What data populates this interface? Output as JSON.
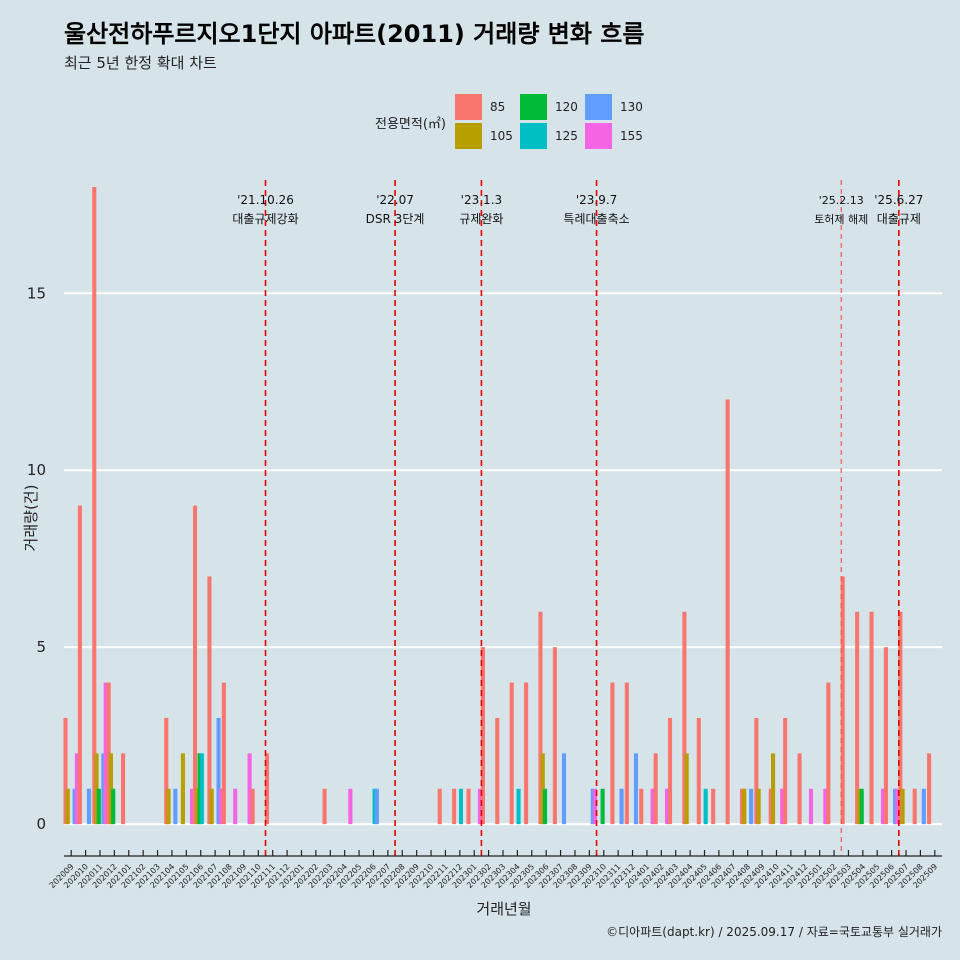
{
  "chart_data": {
    "type": "bar",
    "stacked": false,
    "title": "울산전하푸르지오1단지 아파트(2011) 거래량 변화 흐름",
    "subtitle": "최근 5년 한정 확대 차트",
    "xlabel": "거래년월",
    "ylabel": "거래량(건)",
    "ylim": [
      -0.9,
      18.2
    ],
    "yticks": [
      0,
      5,
      10,
      15
    ],
    "legend": {
      "title": "전용면적(㎡)",
      "position": "top",
      "entries": [
        {
          "name": "85",
          "color": "#F8766D"
        },
        {
          "name": "105",
          "color": "#B79F00"
        },
        {
          "name": "120",
          "color": "#00BA38"
        },
        {
          "name": "125",
          "color": "#00BFC4"
        },
        {
          "name": "130",
          "color": "#619CFF"
        },
        {
          "name": "155",
          "color": "#F564E3"
        }
      ]
    },
    "categories": [
      "202009",
      "202010",
      "202011",
      "202012",
      "202101",
      "202102",
      "202103",
      "202104",
      "202105",
      "202106",
      "202107",
      "202108",
      "202109",
      "202110",
      "202111",
      "202112",
      "202201",
      "202202",
      "202203",
      "202204",
      "202205",
      "202206",
      "202207",
      "202208",
      "202209",
      "202210",
      "202211",
      "202212",
      "202301",
      "202302",
      "202303",
      "202304",
      "202305",
      "202306",
      "202307",
      "202308",
      "202309",
      "202310",
      "202311",
      "202312",
      "202401",
      "202402",
      "202403",
      "202404",
      "202405",
      "202406",
      "202407",
      "202408",
      "202409",
      "202410",
      "202411",
      "202412",
      "202501",
      "202502",
      "202503",
      "202504",
      "202505",
      "202506",
      "202507",
      "202508",
      "202509"
    ],
    "series": [
      {
        "name": "85",
        "values": [
          3,
          9,
          18,
          4,
          2,
          0,
          0,
          3,
          0,
          9,
          7,
          4,
          0,
          1,
          2,
          0,
          0,
          0,
          1,
          0,
          0,
          0,
          0,
          0,
          0,
          0,
          1,
          1,
          1,
          5,
          3,
          4,
          4,
          6,
          5,
          0,
          0,
          0,
          4,
          4,
          1,
          2,
          3,
          6,
          3,
          1,
          12,
          1,
          3,
          1,
          3,
          2,
          0,
          4,
          7,
          6,
          6,
          5,
          6,
          1,
          2
        ]
      },
      {
        "name": "105",
        "values": [
          1,
          0,
          2,
          2,
          0,
          0,
          0,
          1,
          2,
          1,
          1,
          0,
          0,
          0,
          0,
          0,
          0,
          0,
          0,
          0,
          0,
          0,
          0,
          0,
          0,
          0,
          0,
          0,
          0,
          0,
          0,
          0,
          0,
          2,
          0,
          0,
          0,
          0,
          0,
          0,
          0,
          0,
          0,
          2,
          0,
          0,
          0,
          1,
          1,
          2,
          0,
          0,
          0,
          0,
          0,
          1,
          0,
          0,
          1,
          0,
          0
        ]
      },
      {
        "name": "120",
        "values": [
          0,
          0,
          1,
          1,
          0,
          0,
          0,
          0,
          0,
          2,
          0,
          0,
          0,
          0,
          0,
          0,
          0,
          0,
          0,
          0,
          0,
          0,
          0,
          0,
          0,
          0,
          0,
          0,
          0,
          0,
          0,
          0,
          0,
          1,
          0,
          0,
          0,
          1,
          0,
          0,
          0,
          0,
          0,
          0,
          0,
          0,
          0,
          0,
          0,
          0,
          0,
          0,
          0,
          0,
          0,
          1,
          0,
          0,
          0,
          0,
          0
        ]
      },
      {
        "name": "125",
        "values": [
          0,
          0,
          0,
          0,
          0,
          0,
          0,
          0,
          0,
          2,
          0,
          0,
          0,
          0,
          0,
          0,
          0,
          0,
          0,
          0,
          0,
          1,
          0,
          0,
          0,
          0,
          0,
          1,
          0,
          0,
          0,
          1,
          0,
          0,
          0,
          0,
          0,
          0,
          0,
          0,
          0,
          0,
          0,
          0,
          1,
          0,
          0,
          0,
          0,
          0,
          0,
          0,
          0,
          0,
          0,
          0,
          0,
          0,
          0,
          0,
          0
        ]
      },
      {
        "name": "130",
        "values": [
          1,
          1,
          2,
          0,
          0,
          0,
          0,
          1,
          0,
          0,
          3,
          0,
          0,
          0,
          0,
          0,
          0,
          0,
          0,
          0,
          0,
          1,
          0,
          0,
          0,
          0,
          0,
          0,
          0,
          0,
          0,
          0,
          0,
          0,
          2,
          0,
          1,
          0,
          1,
          2,
          0,
          0,
          0,
          0,
          0,
          0,
          0,
          1,
          0,
          0,
          0,
          0,
          0,
          0,
          0,
          0,
          0,
          1,
          0,
          1,
          0
        ]
      },
      {
        "name": "155",
        "values": [
          2,
          0,
          4,
          0,
          0,
          0,
          0,
          0,
          1,
          0,
          1,
          1,
          2,
          0,
          0,
          0,
          0,
          0,
          0,
          1,
          0,
          0,
          0,
          0,
          0,
          0,
          0,
          0,
          1,
          0,
          0,
          0,
          0,
          0,
          0,
          0,
          1,
          0,
          0,
          0,
          1,
          1,
          0,
          0,
          0,
          0,
          0,
          0,
          0,
          1,
          0,
          1,
          1,
          0,
          0,
          0,
          1,
          1,
          0,
          0,
          0
        ]
      }
    ],
    "events": [
      {
        "date": "'21.10.26",
        "label": "대출규제강화",
        "after_category": "202110",
        "style": "dashed"
      },
      {
        "date": "'22.07",
        "label": "DSR 3단계",
        "after_category": "202207",
        "style": "dashed"
      },
      {
        "date": "'23.1.3",
        "label": "규제완화",
        "after_category": "202301",
        "style": "dashed"
      },
      {
        "date": "'23.9.7",
        "label": "특례대출축소",
        "after_category": "202309",
        "style": "dashed"
      },
      {
        "date": "'25.2.13",
        "label": "토허제 해제",
        "after_category": "202502",
        "style": "thin-dashed"
      },
      {
        "date": "'25.6.27",
        "label": "대출규제",
        "after_category": "202506",
        "style": "dashed"
      }
    ],
    "caption": "©디아파트(dapt.kr) / 2025.09.17 / 자료=국토교통부 실거래가"
  }
}
